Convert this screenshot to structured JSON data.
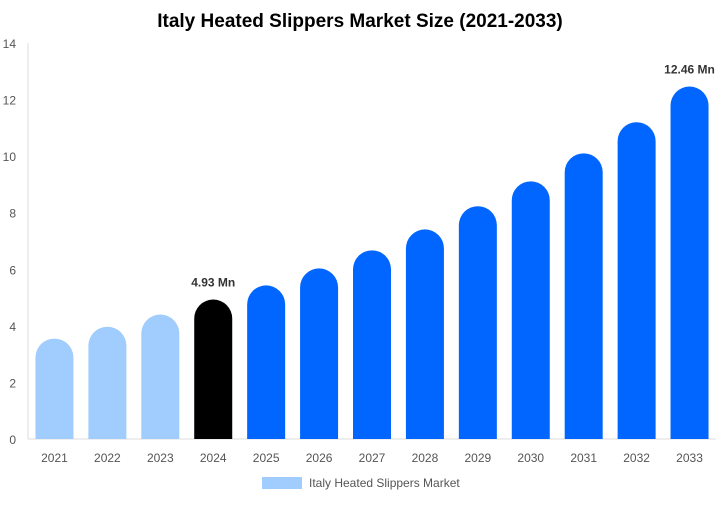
{
  "chart_data": {
    "type": "bar",
    "title": "Italy Heated Slippers Market Size (2021-2033)",
    "xlabel": "",
    "ylabel": "",
    "categories": [
      "2021",
      "2022",
      "2023",
      "2024",
      "2025",
      "2026",
      "2027",
      "2028",
      "2029",
      "2030",
      "2031",
      "2032",
      "2033"
    ],
    "series": [
      {
        "name": "Italy Heated Slippers Market",
        "values": [
          3.55,
          3.97,
          4.4,
          4.93,
          5.43,
          6.03,
          6.67,
          7.41,
          8.23,
          9.11,
          10.1,
          11.2,
          12.46
        ]
      }
    ],
    "data_labels": [
      {
        "category": "2024",
        "text": "4.93 Mn"
      },
      {
        "category": "2033",
        "text": "12.46 Mn"
      }
    ],
    "ylim": [
      0,
      14
    ],
    "yticks": [
      0,
      2,
      4,
      6,
      8,
      10,
      12,
      14
    ],
    "grid": false,
    "legend": "bottom",
    "colors": {
      "historical": "#a0cdfd",
      "base_year": "#000000",
      "forecast": "#0066ff",
      "legend_swatch": "#a0cdfd"
    }
  }
}
